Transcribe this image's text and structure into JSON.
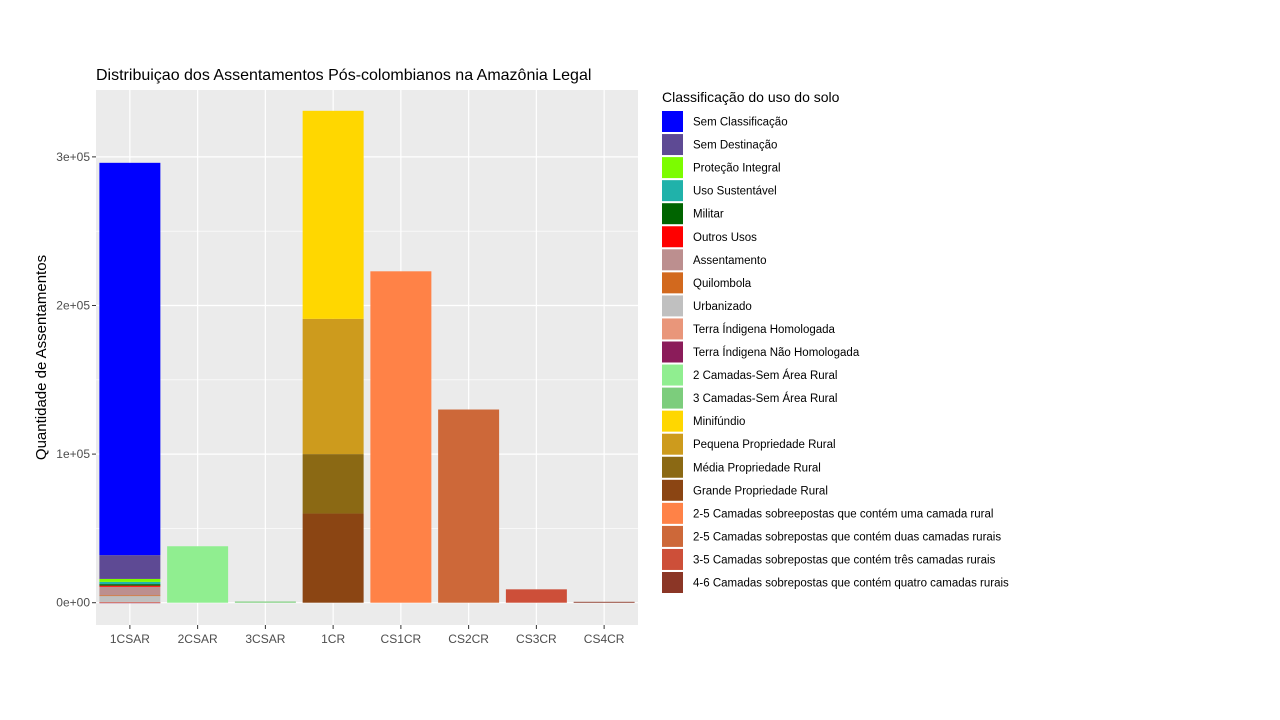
{
  "chart_data": {
    "type": "bar",
    "stacked": true,
    "title": "Distribuiçao dos Assentamentos Pós-colombianos na Amazônia Legal",
    "xlabel": "",
    "ylabel": "Quantidade de Assentamentos",
    "ylim": [
      -15000,
      345000
    ],
    "y_ticks": [
      0,
      100000,
      200000,
      300000
    ],
    "y_tick_labels": [
      "0e+00",
      "1e+05",
      "2e+05",
      "3e+05"
    ],
    "categories": [
      "1CSAR",
      "2CSAR",
      "3CSAR",
      "1CR",
      "CS1CR",
      "CS2CR",
      "CS3CR",
      "CS4CR"
    ],
    "grid": true,
    "legend_title": "Classificação do uso do solo",
    "legend_position": "right",
    "series": [
      {
        "name": "Sem Classificação",
        "color": "#0000FF",
        "values": [
          264000,
          0,
          0,
          0,
          0,
          0,
          0,
          0
        ]
      },
      {
        "name": "Sem Destinação",
        "color": "#5E4A94",
        "values": [
          16000,
          0,
          0,
          0,
          0,
          0,
          0,
          0
        ]
      },
      {
        "name": "Proteção Integral",
        "color": "#7CFC00",
        "values": [
          2000,
          0,
          0,
          0,
          0,
          0,
          0,
          0
        ]
      },
      {
        "name": "Uso Sustentável",
        "color": "#20B2AA",
        "values": [
          1500,
          0,
          0,
          0,
          0,
          0,
          0,
          0
        ]
      },
      {
        "name": "Militar",
        "color": "#006400",
        "values": [
          1000,
          0,
          0,
          0,
          0,
          0,
          0,
          0
        ]
      },
      {
        "name": "Outros Usos",
        "color": "#FF0000",
        "values": [
          800,
          0,
          0,
          0,
          0,
          0,
          0,
          0
        ]
      },
      {
        "name": "Assentamento",
        "color": "#BC8F8F",
        "values": [
          5700,
          0,
          0,
          0,
          0,
          0,
          0,
          0
        ]
      },
      {
        "name": "Quilombola",
        "color": "#D2691E",
        "values": [
          500,
          0,
          0,
          0,
          0,
          0,
          0,
          0
        ]
      },
      {
        "name": "Urbanizado",
        "color": "#C0C0C0",
        "values": [
          4000,
          0,
          0,
          0,
          0,
          0,
          0,
          0
        ]
      },
      {
        "name": "Terra Índigena Homologada",
        "color": "#E9967A",
        "values": [
          300,
          0,
          0,
          0,
          0,
          0,
          0,
          0
        ]
      },
      {
        "name": "Terra Índigena Não Homologada",
        "color": "#8B1C5A",
        "values": [
          200,
          0,
          0,
          0,
          0,
          0,
          0,
          0
        ]
      },
      {
        "name": "2 Camadas-Sem Área Rural",
        "color": "#90EE90",
        "values": [
          0,
          38000,
          0,
          0,
          0,
          0,
          0,
          0
        ]
      },
      {
        "name": "3 Camadas-Sem Área Rural",
        "color": "#7CCD7C",
        "values": [
          0,
          0,
          800,
          0,
          0,
          0,
          0,
          0
        ]
      },
      {
        "name": "Minifúndio",
        "color": "#FFD700",
        "values": [
          0,
          0,
          0,
          140000,
          0,
          0,
          0,
          0
        ]
      },
      {
        "name": "Pequena Propriedade Rural",
        "color": "#CD9B1D",
        "values": [
          0,
          0,
          0,
          91000,
          0,
          0,
          0,
          0
        ]
      },
      {
        "name": "Média Propriedade Rural",
        "color": "#8B6914",
        "values": [
          0,
          0,
          0,
          40000,
          0,
          0,
          0,
          0
        ]
      },
      {
        "name": "Grande Propriedade Rural",
        "color": "#8B4513",
        "values": [
          0,
          0,
          0,
          60000,
          0,
          0,
          0,
          0
        ]
      },
      {
        "name": "2-5 Camadas sobreepostas que contém  uma camada rural",
        "color": "#FF8247",
        "values": [
          0,
          0,
          0,
          0,
          223000,
          0,
          0,
          0
        ]
      },
      {
        "name": "2-5 Camadas sobrepostas que contém duas camadas rurais",
        "color": "#CD6839",
        "values": [
          0,
          0,
          0,
          0,
          0,
          130000,
          0,
          0
        ]
      },
      {
        "name": "3-5 Camadas sobrepostas que contém três camadas rurais",
        "color": "#CD4F39",
        "values": [
          0,
          0,
          0,
          0,
          0,
          0,
          9000,
          0
        ]
      },
      {
        "name": "4-6 Camadas sobrepostas que contém quatro camadas rurais",
        "color": "#8B3626",
        "values": [
          0,
          0,
          0,
          0,
          0,
          0,
          0,
          600
        ]
      }
    ]
  }
}
